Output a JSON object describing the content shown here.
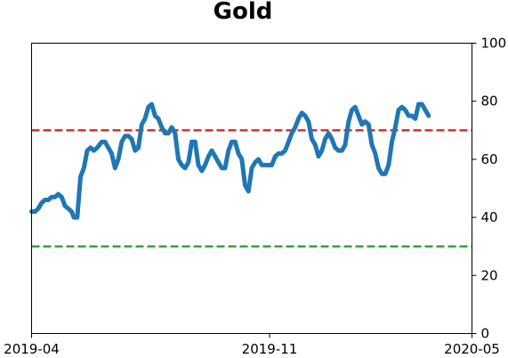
{
  "chart_data": {
    "type": "line",
    "title": "Gold",
    "xlabel": "",
    "ylabel": "",
    "ylim": [
      0,
      100
    ],
    "y_axis_side": "right",
    "yticks": [
      0,
      20,
      40,
      60,
      80,
      100
    ],
    "xlim": [
      "2019-04-01",
      "2020-05-01"
    ],
    "xticks": [
      {
        "date": "2019-04-01",
        "label": "2019-04"
      },
      {
        "date": "2019-11-01",
        "label": "2019-11"
      },
      {
        "date": "2020-05-01",
        "label": "2020-05"
      }
    ],
    "grid": false,
    "reference_lines": [
      {
        "y": 70,
        "color": "#d62728",
        "style": "dashed"
      },
      {
        "y": 30,
        "color": "#2ca02c",
        "style": "dashed"
      }
    ],
    "series": [
      {
        "color": "#1f77b4",
        "points": [
          [
            "2019-04-01",
            42
          ],
          [
            "2019-04-04",
            42
          ],
          [
            "2019-04-07",
            43
          ],
          [
            "2019-04-10",
            45
          ],
          [
            "2019-04-13",
            46
          ],
          [
            "2019-04-16",
            46
          ],
          [
            "2019-04-19",
            47
          ],
          [
            "2019-04-22",
            47
          ],
          [
            "2019-04-25",
            48
          ],
          [
            "2019-04-28",
            47
          ],
          [
            "2019-05-01",
            44
          ],
          [
            "2019-05-04",
            43
          ],
          [
            "2019-05-07",
            42
          ],
          [
            "2019-05-09",
            40
          ],
          [
            "2019-05-12",
            40
          ],
          [
            "2019-05-15",
            54
          ],
          [
            "2019-05-18",
            57
          ],
          [
            "2019-05-21",
            63
          ],
          [
            "2019-05-24",
            64
          ],
          [
            "2019-05-27",
            63
          ],
          [
            "2019-05-30",
            64
          ],
          [
            "2019-06-03",
            66
          ],
          [
            "2019-06-06",
            66
          ],
          [
            "2019-06-09",
            64
          ],
          [
            "2019-06-12",
            62
          ],
          [
            "2019-06-15",
            57
          ],
          [
            "2019-06-18",
            60
          ],
          [
            "2019-06-21",
            66
          ],
          [
            "2019-06-24",
            68
          ],
          [
            "2019-06-27",
            68
          ],
          [
            "2019-06-30",
            67
          ],
          [
            "2019-07-03",
            63
          ],
          [
            "2019-07-06",
            64
          ],
          [
            "2019-07-09",
            72
          ],
          [
            "2019-07-12",
            74
          ],
          [
            "2019-07-15",
            78
          ],
          [
            "2019-07-18",
            79
          ],
          [
            "2019-07-21",
            75
          ],
          [
            "2019-07-24",
            74
          ],
          [
            "2019-07-27",
            71
          ],
          [
            "2019-07-30",
            69
          ],
          [
            "2019-08-02",
            69
          ],
          [
            "2019-08-05",
            71
          ],
          [
            "2019-08-08",
            69
          ],
          [
            "2019-08-11",
            60
          ],
          [
            "2019-08-14",
            58
          ],
          [
            "2019-08-17",
            57
          ],
          [
            "2019-08-20",
            59
          ],
          [
            "2019-08-23",
            66
          ],
          [
            "2019-08-26",
            66
          ],
          [
            "2019-08-29",
            58
          ],
          [
            "2019-09-01",
            56
          ],
          [
            "2019-09-04",
            58
          ],
          [
            "2019-09-07",
            61
          ],
          [
            "2019-09-10",
            63
          ],
          [
            "2019-09-13",
            61
          ],
          [
            "2019-09-16",
            59
          ],
          [
            "2019-09-19",
            57
          ],
          [
            "2019-09-22",
            57
          ],
          [
            "2019-09-25",
            63
          ],
          [
            "2019-09-28",
            66
          ],
          [
            "2019-10-01",
            66
          ],
          [
            "2019-10-04",
            62
          ],
          [
            "2019-10-07",
            60
          ],
          [
            "2019-10-10",
            51
          ],
          [
            "2019-10-13",
            49
          ],
          [
            "2019-10-16",
            57
          ],
          [
            "2019-10-19",
            59
          ],
          [
            "2019-10-22",
            60
          ],
          [
            "2019-10-25",
            58
          ],
          [
            "2019-10-28",
            58
          ],
          [
            "2019-10-31",
            58
          ],
          [
            "2019-11-03",
            58
          ],
          [
            "2019-11-06",
            61
          ],
          [
            "2019-11-09",
            62
          ],
          [
            "2019-11-12",
            62
          ],
          [
            "2019-11-15",
            63
          ],
          [
            "2019-11-18",
            66
          ],
          [
            "2019-11-21",
            69
          ],
          [
            "2019-11-24",
            71
          ],
          [
            "2019-11-27",
            74
          ],
          [
            "2019-11-30",
            76
          ],
          [
            "2019-12-03",
            75
          ],
          [
            "2019-12-06",
            73
          ],
          [
            "2019-12-09",
            67
          ],
          [
            "2019-12-12",
            65
          ],
          [
            "2019-12-15",
            61
          ],
          [
            "2019-12-18",
            63
          ],
          [
            "2019-12-21",
            67
          ],
          [
            "2019-12-24",
            69
          ],
          [
            "2019-12-27",
            67
          ],
          [
            "2019-12-30",
            64
          ],
          [
            "2020-01-02",
            63
          ],
          [
            "2020-01-05",
            63
          ],
          [
            "2020-01-08",
            65
          ],
          [
            "2020-01-11",
            73
          ],
          [
            "2020-01-14",
            77
          ],
          [
            "2020-01-17",
            78
          ],
          [
            "2020-01-20",
            75
          ],
          [
            "2020-01-23",
            72
          ],
          [
            "2020-01-26",
            73
          ],
          [
            "2020-01-29",
            72
          ],
          [
            "2020-02-01",
            65
          ],
          [
            "2020-02-04",
            62
          ],
          [
            "2020-02-07",
            57
          ],
          [
            "2020-02-10",
            55
          ],
          [
            "2020-02-13",
            55
          ],
          [
            "2020-02-16",
            58
          ],
          [
            "2020-02-19",
            66
          ],
          [
            "2020-02-22",
            71
          ],
          [
            "2020-02-25",
            77
          ],
          [
            "2020-02-28",
            78
          ],
          [
            "2020-03-02",
            77
          ],
          [
            "2020-03-05",
            75
          ],
          [
            "2020-03-08",
            75
          ],
          [
            "2020-03-11",
            74
          ],
          [
            "2020-03-14",
            79
          ],
          [
            "2020-03-17",
            79
          ],
          [
            "2020-03-20",
            77
          ],
          [
            "2020-03-23",
            75
          ]
        ]
      }
    ]
  }
}
